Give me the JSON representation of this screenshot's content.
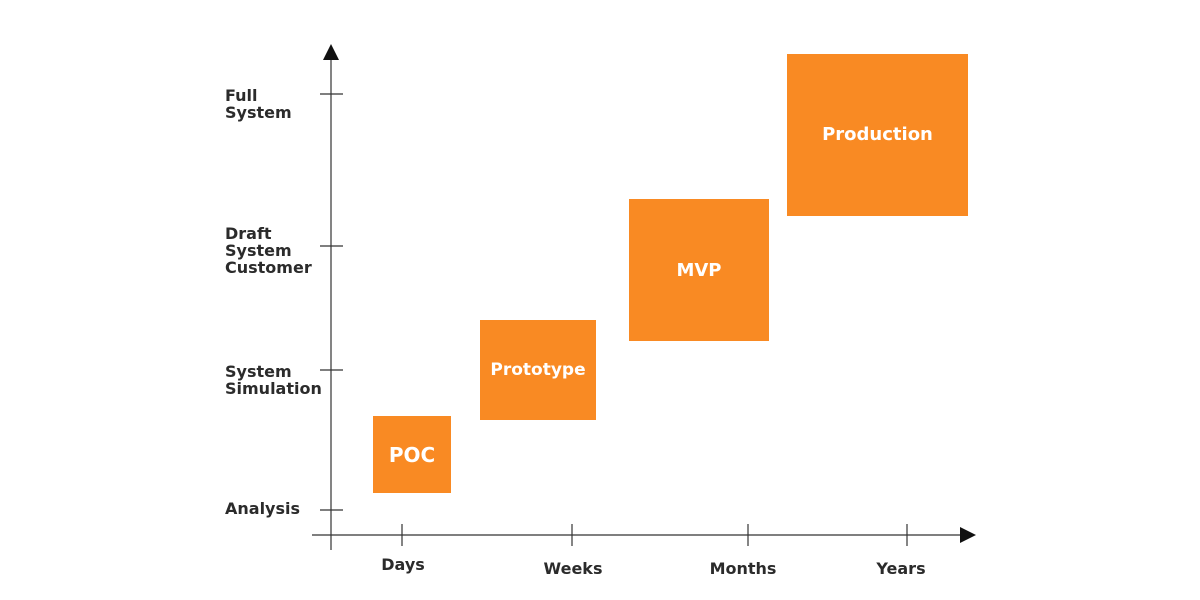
{
  "colors": {
    "block": "#f98a23",
    "axis": "#333333",
    "text": "#2b2b2b",
    "block_text": "#ffffff"
  },
  "y_axis": {
    "levels": [
      {
        "label": "Full\nSystem"
      },
      {
        "label": "Draft\nSystem\nCustomer"
      },
      {
        "label": "System\nSimulation"
      },
      {
        "label": "Analysis"
      }
    ]
  },
  "x_axis": {
    "levels": [
      {
        "label": "Days"
      },
      {
        "label": "Weeks"
      },
      {
        "label": "Months"
      },
      {
        "label": "Years"
      }
    ]
  },
  "stages": [
    {
      "label": "POC"
    },
    {
      "label": "Prototype"
    },
    {
      "label": "MVP"
    },
    {
      "label": "Production"
    }
  ]
}
